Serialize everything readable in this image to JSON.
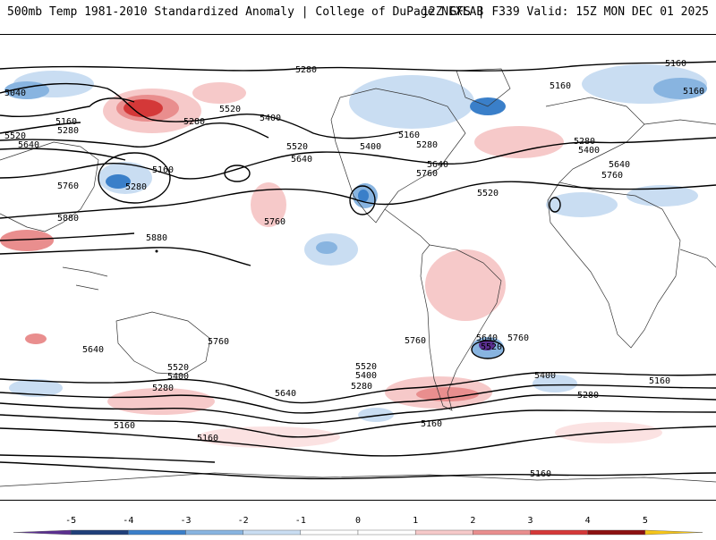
{
  "header": {
    "left": "500mb Temp 1981-2010 Standardized Anomaly | College of DuPage NEXLAB",
    "right": "12Z GFS | F339 Valid: 15Z MON DEC 01 2025"
  },
  "colorbar": {
    "ticks": [
      "-5",
      "-4",
      "-3",
      "-2",
      "-1",
      "0",
      "1",
      "2",
      "3",
      "4",
      "5"
    ],
    "colors": [
      "#5a2f8f",
      "#1f3f7a",
      "#3a7fc9",
      "#88b4e0",
      "#c9ddf2",
      "#ffffff",
      "#ffffff",
      "#f6c9c9",
      "#e98e8e",
      "#d43838",
      "#8c1010",
      "#f5c518"
    ]
  },
  "contours": {
    "labels": [
      {
        "text": "5280"
      },
      {
        "text": "5160"
      },
      {
        "text": "5040"
      },
      {
        "text": "5520"
      },
      {
        "text": "5400"
      },
      {
        "text": "5280"
      },
      {
        "text": "5160"
      },
      {
        "text": "5280"
      },
      {
        "text": "5520"
      },
      {
        "text": "5640"
      },
      {
        "text": "5160"
      },
      {
        "text": "5280"
      },
      {
        "text": "5760"
      },
      {
        "text": "5880"
      },
      {
        "text": "5880"
      },
      {
        "text": "5760"
      },
      {
        "text": "5520"
      },
      {
        "text": "5640"
      },
      {
        "text": "5400"
      },
      {
        "text": "5160"
      },
      {
        "text": "5280"
      },
      {
        "text": "5640"
      },
      {
        "text": "5760"
      },
      {
        "text": "5520"
      },
      {
        "text": "5160"
      },
      {
        "text": "5160"
      },
      {
        "text": "5280"
      },
      {
        "text": "5400"
      },
      {
        "text": "5640"
      },
      {
        "text": "5760"
      },
      {
        "text": "5640"
      },
      {
        "text": "5520"
      },
      {
        "text": "5400"
      },
      {
        "text": "5280"
      },
      {
        "text": "5760"
      },
      {
        "text": "5640"
      },
      {
        "text": "5520"
      },
      {
        "text": "5400"
      },
      {
        "text": "5280"
      },
      {
        "text": "5760"
      },
      {
        "text": "5640"
      },
      {
        "text": "5520"
      },
      {
        "text": "5760"
      },
      {
        "text": "5400"
      },
      {
        "text": "5280"
      },
      {
        "text": "5160"
      },
      {
        "text": "5160"
      },
      {
        "text": "5160"
      },
      {
        "text": "5160"
      },
      {
        "text": "5160"
      }
    ]
  }
}
